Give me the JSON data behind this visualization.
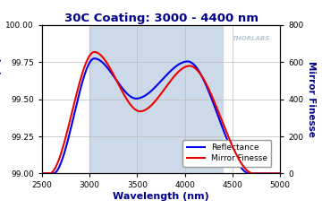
{
  "title": "30C Coating: 3000 - 4400 nm",
  "xlabel": "Wavelength (nm)",
  "ylabel_left": "Reflectance (%)",
  "ylabel_right": "Mirror Finesse",
  "xlim": [
    2500,
    5000
  ],
  "ylim_left": [
    99.0,
    100.0
  ],
  "ylim_right": [
    0,
    800
  ],
  "xticks": [
    2500,
    3000,
    3500,
    4000,
    4500,
    5000
  ],
  "yticks_left": [
    99.0,
    99.25,
    99.5,
    99.75,
    100.0
  ],
  "yticks_right": [
    0,
    200,
    400,
    600,
    800
  ],
  "shaded_region": [
    3000,
    4400
  ],
  "shaded_color": "#ccd9e8",
  "grid_color": "#bbbbbb",
  "background_color": "#ffffff",
  "line_blue": "#0000ee",
  "line_red": "#ee0000",
  "thorlabs_text": "THORLABS",
  "thorlabs_color": "#b8c8d4",
  "legend_labels": [
    "Reflectance",
    "Mirror Finesse"
  ],
  "title_color": "#00008B",
  "axis_label_color": "#00008B",
  "tick_label_color": "#000000",
  "refl_p1_x": 3050,
  "refl_p1_y": 99.775,
  "refl_v_x": 3490,
  "refl_v_y": 99.505,
  "refl_p2_x": 4030,
  "refl_p2_y": 99.755,
  "refl_rise_start": 2620,
  "refl_fall_end": 4680,
  "fin_p1_x": 3050,
  "fin_p1_y": 655,
  "fin_v_x": 3530,
  "fin_v_y": 335,
  "fin_p2_x": 4050,
  "fin_p2_y": 580,
  "fin_rise_start": 2580,
  "fin_fall_end": 4720
}
